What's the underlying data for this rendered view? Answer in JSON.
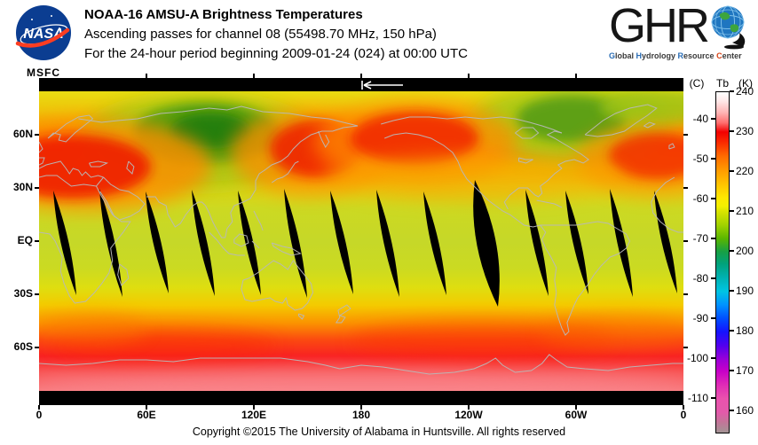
{
  "branding": {
    "nasa": {
      "wordmark": "NASA",
      "center": "MSFC"
    },
    "ghrc": {
      "wordmark": "GHR",
      "tagline": [
        {
          "text": "G",
          "color": "#2a6db5"
        },
        {
          "text": "lobal ",
          "color": "#3a3a3a"
        },
        {
          "text": "H",
          "color": "#2a6db5"
        },
        {
          "text": "ydrology ",
          "color": "#3a3a3a"
        },
        {
          "text": "R",
          "color": "#2a6db5"
        },
        {
          "text": "esource ",
          "color": "#3a3a3a"
        },
        {
          "text": "C",
          "color": "#d84315"
        },
        {
          "text": "enter",
          "color": "#3a3a3a"
        }
      ]
    }
  },
  "titles": {
    "line1": "NOAA-16 AMSU-A Brightness Temperatures",
    "line2": "Ascending passes for channel 08 (55498.70 MHz, 150 hPa)",
    "line3": "For the 24-hour period beginning 2009-01-24 (024) at 00:00 UTC"
  },
  "map": {
    "lat_labels": [
      {
        "text": "60N",
        "lat": 60
      },
      {
        "text": "30N",
        "lat": 30
      },
      {
        "text": "EQ",
        "lat": 0
      },
      {
        "text": "30S",
        "lat": -30
      },
      {
        "text": "60S",
        "lat": -60
      }
    ],
    "lon_labels": [
      {
        "text": "0",
        "lon": 0
      },
      {
        "text": "60E",
        "lon": 60
      },
      {
        "text": "120E",
        "lon": 120
      },
      {
        "text": "180",
        "lon": 180
      },
      {
        "text": "120W",
        "lon": 240
      },
      {
        "text": "60W",
        "lon": 300
      },
      {
        "text": "0",
        "lon": 360
      }
    ]
  },
  "colorbar": {
    "header_c": "(C)",
    "header_tb": "Tb",
    "header_k": "(K)",
    "kelvin_ticks": [
      240,
      230,
      220,
      210,
      200,
      190,
      180,
      170,
      160
    ],
    "celsius_ticks": [
      -40,
      -50,
      -60,
      -70,
      -80,
      -90,
      -100,
      -110
    ],
    "range_kelvin": [
      155,
      240
    ]
  },
  "footer": {
    "copyright": "Copyright ©2015 The University of Alabama in Huntsville.  All rights reserved"
  },
  "chart_data": {
    "type": "heatmap",
    "title": "NOAA-16 AMSU-A Brightness Temperatures",
    "subtitle": "Ascending passes for channel 08 (55498.70 MHz, 150 hPa)",
    "period": "24-hour period beginning 2009-01-24 (024) at 00:00 UTC",
    "projection": "equirectangular, longitude 0E to 360E left-to-right",
    "x_axis_ticks_deg": [
      "0",
      "60E",
      "120E",
      "180",
      "120W",
      "60W",
      "0"
    ],
    "y_axis_ticks": [
      "60N",
      "30N",
      "EQ",
      "30S",
      "60S"
    ],
    "colorbar_units": [
      "C",
      "K"
    ],
    "colorbar_kelvin_ticks": [
      240,
      230,
      220,
      210,
      200,
      190,
      180,
      170,
      160
    ],
    "colorbar_celsius_ticks": [
      -40,
      -50,
      -60,
      -70,
      -80,
      -90,
      -100,
      -110
    ],
    "colorbar_scale_note": "white ~240K, red ~230K, orange ~220K, yellow-green ~210K, green ~200K, cyan ~190K, blue ~180K, magenta ~170K, pink ~160K, gray below ~157K",
    "zonal_structure": [
      {
        "lat_band": "83N-90N",
        "tb_k": "no data (black strip)"
      },
      {
        "lat_band": "60N-83N",
        "tb_k": "205-222; cold green minima ~198-205 over Siberia and northern Canada/Greenland"
      },
      {
        "lat_band": "40N-60N",
        "tb_k": "224-232; red maxima over Europe/N Atlantic, NW Pacific/Japan, Gulf of Alaska, central N Atlantic"
      },
      {
        "lat_band": "30N-30S",
        "tb_k": "208-213 yellow-green tropical band with black inter-swath gaps"
      },
      {
        "lat_band": "35S-50S",
        "tb_k": "215-225 yellow to orange"
      },
      {
        "lat_band": "50S-70S",
        "tb_k": "228-233 red"
      },
      {
        "lat_band": "70S-83S",
        "tb_k": "230-236 pink-red over Antarctica"
      },
      {
        "lat_band": "83S-90S",
        "tb_k": "no data (black strip)"
      }
    ],
    "swath_gaps": {
      "count": 14,
      "shape": "thin black lens-shaped gaps tilted ~12 deg, widest gap near 170W",
      "lat_extent": [
        "~29N",
        "~33S"
      ]
    },
    "annotations": [
      "white left-pointing arrow in top no-data strip near 180 longitude"
    ]
  }
}
